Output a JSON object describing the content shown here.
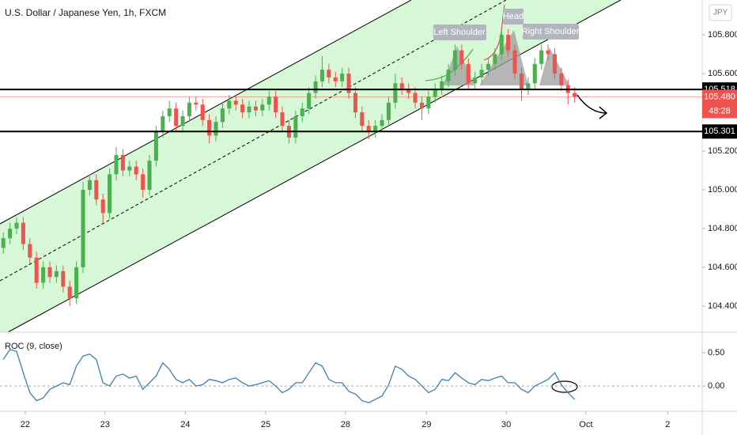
{
  "chart_data": {
    "type": "candlestick",
    "title": "U.S. Dollar / Japanese Yen, 1h, FXCM",
    "currency": "JPY",
    "up_color": "#4caf50",
    "down_color": "#ef5350",
    "open": [
      104.7,
      104.75,
      104.8,
      104.83,
      104.72,
      104.65,
      104.52,
      104.6,
      104.55,
      104.58,
      104.5,
      104.44,
      104.6,
      105.0,
      105.05,
      104.95,
      104.88,
      105.08,
      105.18,
      105.1,
      105.12,
      105.08,
      105.0,
      105.15,
      105.3,
      105.38,
      105.42,
      105.33,
      105.38,
      105.45,
      105.44,
      105.36,
      105.28,
      105.35,
      105.42,
      105.46,
      105.44,
      105.4,
      105.43,
      105.41,
      105.44,
      105.48,
      105.4,
      105.33,
      105.27,
      105.38,
      105.42,
      105.5,
      105.56,
      105.62,
      105.58,
      105.56,
      105.6,
      105.5,
      105.4,
      105.33,
      105.3,
      105.33,
      105.36,
      105.45,
      105.55,
      105.52,
      105.5,
      105.45,
      105.42,
      105.48,
      105.52,
      105.56,
      105.62,
      105.72,
      105.65,
      105.55,
      105.58,
      105.62,
      105.65,
      105.7,
      105.8,
      105.72,
      105.6,
      105.52,
      105.55,
      105.65,
      105.72,
      105.7,
      105.6,
      105.54,
      105.5
    ],
    "high": [
      104.78,
      104.83,
      104.86,
      104.86,
      104.75,
      104.68,
      104.63,
      104.63,
      104.61,
      104.61,
      104.53,
      104.63,
      105.04,
      105.08,
      105.08,
      104.98,
      105.11,
      105.22,
      105.21,
      105.15,
      105.15,
      105.11,
      105.18,
      105.33,
      105.41,
      105.46,
      105.45,
      105.41,
      105.48,
      105.48,
      105.47,
      105.39,
      105.38,
      105.45,
      105.49,
      105.49,
      105.47,
      105.46,
      105.46,
      105.47,
      105.51,
      105.51,
      105.43,
      105.36,
      105.41,
      105.45,
      105.53,
      105.59,
      105.69,
      105.65,
      105.61,
      105.63,
      105.63,
      105.53,
      105.43,
      105.36,
      105.36,
      105.39,
      105.48,
      105.6,
      105.58,
      105.55,
      105.53,
      105.48,
      105.51,
      105.55,
      105.59,
      105.65,
      105.75,
      105.75,
      105.68,
      105.61,
      105.65,
      105.68,
      105.73,
      105.83,
      105.83,
      105.75,
      105.63,
      105.58,
      105.68,
      105.75,
      105.75,
      105.73,
      105.63,
      105.57,
      105.53
    ],
    "low": [
      104.67,
      104.72,
      104.77,
      104.69,
      104.62,
      104.49,
      104.49,
      104.52,
      104.52,
      104.47,
      104.4,
      104.41,
      104.57,
      104.97,
      104.92,
      104.83,
      104.85,
      105.05,
      105.07,
      105.07,
      105.05,
      104.96,
      104.97,
      105.12,
      105.27,
      105.35,
      105.3,
      105.3,
      105.35,
      105.41,
      105.33,
      105.24,
      105.25,
      105.32,
      105.39,
      105.41,
      105.37,
      105.37,
      105.38,
      105.38,
      105.41,
      105.37,
      105.3,
      105.24,
      105.24,
      105.35,
      105.39,
      105.47,
      105.53,
      105.55,
      105.53,
      105.53,
      105.47,
      105.37,
      105.3,
      105.26,
      105.27,
      105.3,
      105.33,
      105.42,
      105.49,
      105.47,
      105.42,
      105.36,
      105.39,
      105.45,
      105.49,
      105.53,
      105.59,
      105.62,
      105.52,
      105.52,
      105.55,
      105.59,
      105.62,
      105.67,
      105.69,
      105.57,
      105.46,
      105.49,
      105.52,
      105.62,
      105.67,
      105.57,
      105.51,
      105.44,
      105.45
    ],
    "close": [
      104.75,
      104.8,
      104.83,
      104.72,
      104.65,
      104.52,
      104.6,
      104.55,
      104.58,
      104.5,
      104.44,
      104.6,
      105.0,
      105.05,
      104.95,
      104.88,
      105.08,
      105.18,
      105.1,
      105.12,
      105.08,
      105.0,
      105.15,
      105.3,
      105.38,
      105.42,
      105.33,
      105.38,
      105.45,
      105.44,
      105.36,
      105.28,
      105.35,
      105.42,
      105.46,
      105.44,
      105.4,
      105.43,
      105.41,
      105.44,
      105.48,
      105.4,
      105.33,
      105.27,
      105.38,
      105.42,
      105.5,
      105.56,
      105.62,
      105.58,
      105.56,
      105.6,
      105.5,
      105.4,
      105.33,
      105.3,
      105.33,
      105.36,
      105.45,
      105.55,
      105.52,
      105.5,
      105.45,
      105.42,
      105.48,
      105.52,
      105.56,
      105.62,
      105.72,
      105.65,
      105.55,
      105.58,
      105.62,
      105.65,
      105.7,
      105.8,
      105.72,
      105.6,
      105.52,
      105.55,
      105.65,
      105.72,
      105.7,
      105.6,
      105.54,
      105.5,
      105.48
    ],
    "xlim": [
      -0.5,
      105.2
    ],
    "xticks": [
      {
        "value": 3.3,
        "label": "22"
      },
      {
        "value": 15.3,
        "label": "23"
      },
      {
        "value": 27.4,
        "label": "24"
      },
      {
        "value": 39.5,
        "label": "25"
      },
      {
        "value": 51.5,
        "label": "28"
      },
      {
        "value": 63.7,
        "label": "29"
      },
      {
        "value": 75.7,
        "label": "30"
      },
      {
        "value": 87.7,
        "label": "Oct"
      },
      {
        "value": 100,
        "label": "2"
      }
    ],
    "ylim": [
      104.265,
      105.98
    ],
    "yticks": [
      {
        "value": 105.8,
        "label": "105.800"
      },
      {
        "value": 105.6,
        "label": "105.600"
      },
      {
        "value": 105.2,
        "label": "105.200"
      },
      {
        "value": 105.0,
        "label": "105.000"
      },
      {
        "value": 104.8,
        "label": "104.800"
      },
      {
        "value": 104.6,
        "label": "104.600"
      },
      {
        "value": 104.4,
        "label": "104.400"
      }
    ],
    "levels": [
      {
        "value": 105.518,
        "label": "105.518"
      },
      {
        "value": 105.301,
        "label": "105.301"
      }
    ],
    "last_price": {
      "value": 105.48,
      "label": "105.480"
    },
    "countdown": "48:28",
    "annotations": [
      "Left Shoulder",
      "Head",
      "Right Shoulder"
    ],
    "indicator": {
      "name": "ROC (9, close)",
      "color": "#3f7fae",
      "axis": "y2",
      "values": [
        0.4,
        0.55,
        0.52,
        0.2,
        -0.1,
        -0.22,
        -0.18,
        -0.05,
        0.0,
        0.05,
        0.02,
        0.3,
        0.45,
        0.48,
        0.4,
        0.05,
        0.0,
        0.15,
        0.18,
        0.12,
        0.15,
        -0.05,
        0.05,
        0.15,
        0.35,
        0.25,
        0.1,
        0.05,
        0.1,
        0.0,
        0.02,
        0.1,
        0.08,
        0.05,
        0.1,
        0.12,
        0.05,
        0.0,
        0.02,
        0.05,
        0.08,
        0.0,
        -0.1,
        -0.05,
        0.05,
        0.05,
        0.2,
        0.35,
        0.3,
        0.1,
        0.05,
        0.05,
        -0.08,
        -0.12,
        -0.22,
        -0.25,
        -0.2,
        -0.15,
        0.02,
        0.3,
        0.25,
        0.15,
        0.1,
        0.0,
        -0.1,
        -0.05,
        0.1,
        0.08,
        0.2,
        0.12,
        0.05,
        0.02,
        0.1,
        0.08,
        0.12,
        0.15,
        0.05,
        0.05,
        -0.05,
        -0.1,
        0.0,
        0.05,
        0.1,
        0.2,
        0.02,
        -0.1,
        -0.2
      ]
    },
    "y2lim": [
      -0.38,
      0.81
    ],
    "y2ticks": [
      {
        "value": 0.5,
        "label": "0.50"
      },
      {
        "value": 0,
        "label": "0.00"
      }
    ]
  }
}
